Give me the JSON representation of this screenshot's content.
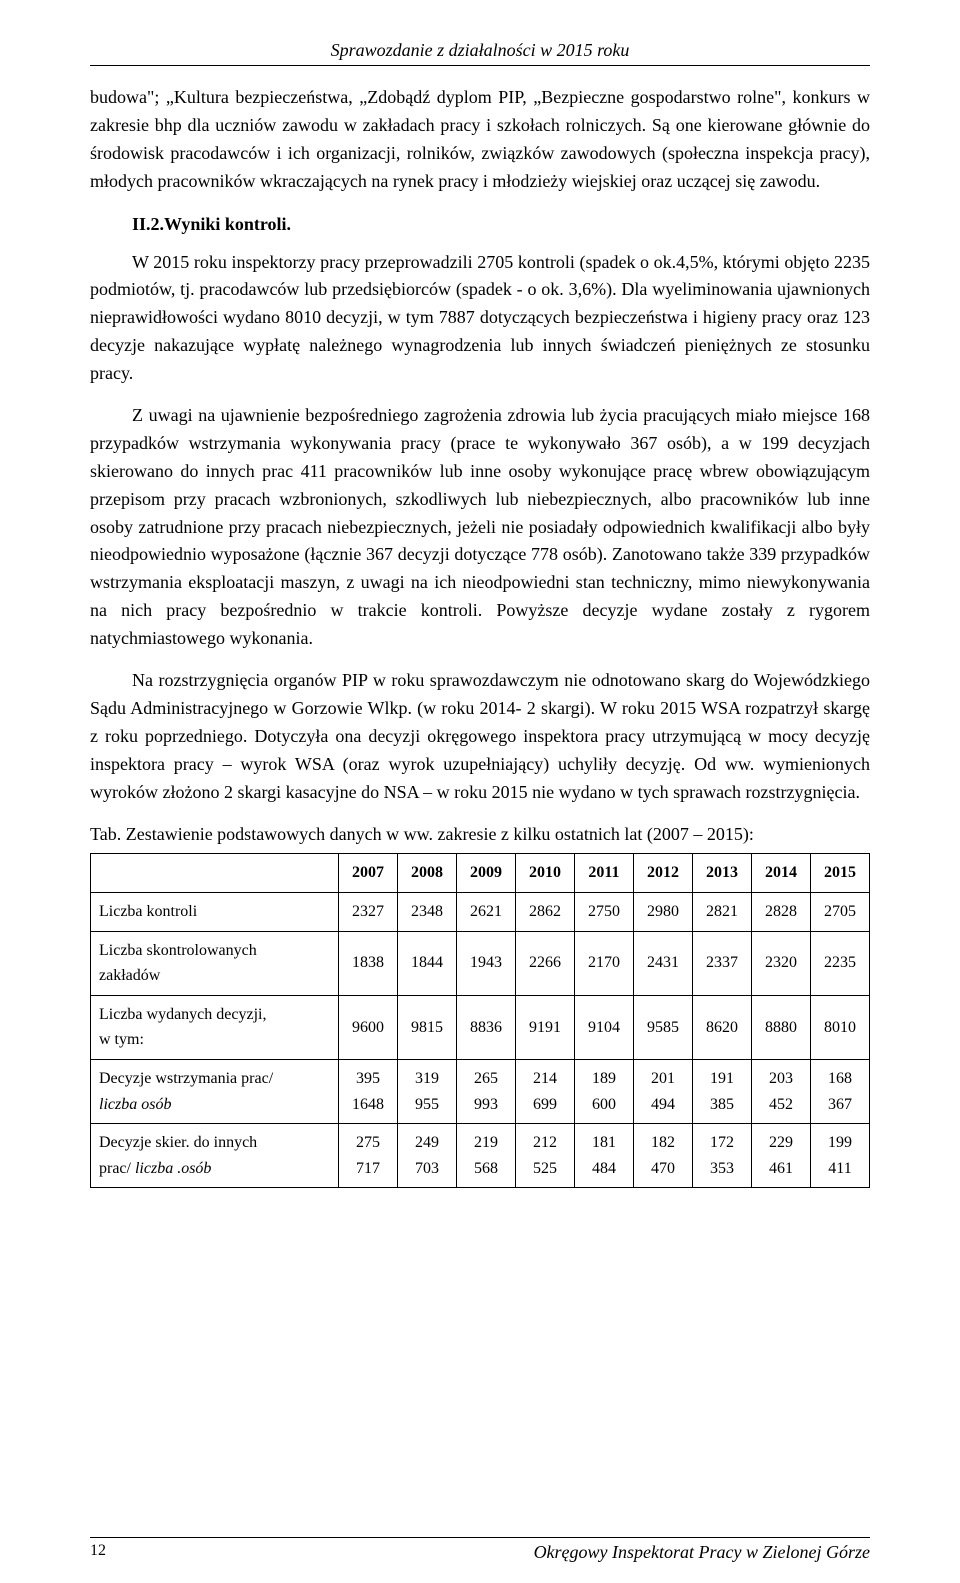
{
  "header": {
    "title": "Sprawozdanie z działalności w 2015 roku"
  },
  "paragraphs": {
    "p1": "budowa\"; „Kultura bezpieczeństwa, „Zdobądź dyplom PIP, „Bezpieczne gospodarstwo rolne\", konkurs w zakresie bhp dla uczniów zawodu w zakładach pracy i szkołach rolniczych. Są one kierowane głównie do środowisk pracodawców i ich organizacji, rolników, związków zawodowych (społeczna inspekcja pracy), młodych pracowników wkraczających na rynek pracy i młodzieży wiejskiej oraz uczącej się zawodu.",
    "heading": "II.2.Wyniki kontroli.",
    "p2": "W 2015 roku inspektorzy pracy przeprowadzili 2705 kontroli (spadek o ok.4,5%, którymi objęto 2235 podmiotów, tj. pracodawców lub przedsiębiorców (spadek - o ok. 3,6%). Dla wyeliminowania ujawnionych nieprawidłowości wydano 8010 decyzji, w tym 7887 dotyczących bezpieczeństwa i higieny pracy oraz 123 decyzje nakazujące wypłatę należnego wynagrodzenia lub innych świadczeń pieniężnych ze stosunku pracy.",
    "p3": "Z uwagi na ujawnienie bezpośredniego zagrożenia zdrowia lub życia pracujących miało miejsce 168 przypadków wstrzymania wykonywania pracy (prace te wykonywało 367 osób), a w 199 decyzjach skierowano do innych prac 411 pracowników lub inne osoby wykonujące pracę wbrew obowiązującym przepisom przy pracach wzbronionych, szkodliwych lub niebezpiecznych, albo pracowników lub inne osoby zatrudnione przy pracach niebezpiecznych, jeżeli nie posiadały odpowiednich kwalifikacji albo były nieodpowiednio wyposażone (łącznie 367 decyzji dotyczące 778 osób). Zanotowano także 339 przypadków wstrzymania eksploatacji maszyn, z uwagi na ich nieodpowiedni stan techniczny, mimo niewykonywania na nich pracy bezpośrednio w trakcie kontroli. Powyższe decyzje wydane zostały z rygorem natychmiastowego wykonania.",
    "p4": "Na rozstrzygnięcia organów PIP w roku sprawozdawczym nie odnotowano skarg do Wojewódzkiego Sądu Administracyjnego w Gorzowie Wlkp. (w roku 2014- 2 skargi). W roku 2015 WSA rozpatrzył skargę z roku poprzedniego. Dotyczyła ona decyzji okręgowego inspektora pracy utrzymującą w mocy decyzję inspektora pracy – wyrok WSA (oraz wyrok uzupełniający) uchyliły decyzję. Od ww. wymienionych wyroków złożono 2 skargi kasacyjne do NSA – w roku 2015 nie wydano w tych sprawach rozstrzygnięcia."
  },
  "table": {
    "caption": "Tab. Zestawienie podstawowych danych w ww. zakresie z kilku ostatnich lat (2007 – 2015):",
    "columns": [
      "2007",
      "2008",
      "2009",
      "2010",
      "2011",
      "2012",
      "2013",
      "2014",
      "2015"
    ],
    "rows": [
      {
        "label": "Liczba kontroli",
        "label2": "",
        "values": [
          "2327",
          "2348",
          "2621",
          "2862",
          "2750",
          "2980",
          "2821",
          "2828",
          "2705"
        ]
      },
      {
        "label": "Liczba skontrolowanych",
        "label2": "zakładów",
        "values": [
          "1838",
          "1844",
          "1943",
          "2266",
          "2170",
          "2431",
          "2337",
          "2320",
          "2235"
        ]
      },
      {
        "label": "Liczba wydanych decyzji,",
        "label2": "w tym:",
        "values": [
          "9600",
          "9815",
          "8836",
          "9191",
          "9104",
          "9585",
          "8620",
          "8880",
          "8010"
        ]
      },
      {
        "label": "Decyzje wstrzymania prac/",
        "label2": "liczba osób",
        "label2_italic": true,
        "values": [
          "395",
          "319",
          "265",
          "214",
          "189",
          "201",
          "191",
          "203",
          "168"
        ],
        "values2": [
          "1648",
          "955",
          "993",
          "699",
          "600",
          "494",
          "385",
          "452",
          "367"
        ]
      },
      {
        "label": "Decyzje skier. do innych",
        "label2": "prac/ liczba .osób",
        "label2_italic_part": "liczba .osób",
        "values": [
          "275",
          "249",
          "219",
          "212",
          "181",
          "182",
          "172",
          "229",
          "199"
        ],
        "values2": [
          "717",
          "703",
          "568",
          "525",
          "484",
          "470",
          "353",
          "461",
          "411"
        ]
      }
    ]
  },
  "footer": {
    "page": "12",
    "org": "Okręgowy Inspektorat Pracy w Zielonej Górze"
  }
}
